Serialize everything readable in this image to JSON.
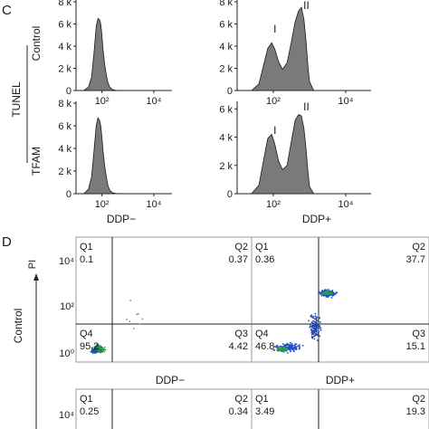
{
  "figure": {
    "panel_c_label": "C",
    "panel_d_label": "D",
    "tunel_label": "TUNEL",
    "row_control_label": "Control",
    "row_tfam_label": "TFAM",
    "xlabel_left": "DDP−",
    "xlabel_right": "DDP+",
    "control_side_label": "Control",
    "pi_label": "PI"
  },
  "chart_data": [
    {
      "type": "area",
      "panel": "C",
      "row": "Control",
      "column": "DDP−",
      "x_scale": "log",
      "x_ticks": [
        "10²",
        "10⁴"
      ],
      "y_ticks": [
        "0",
        "2 k",
        "4 k",
        "6 k",
        "8 k"
      ],
      "ylim": [
        0,
        8000
      ],
      "x": [
        20,
        30,
        40,
        50,
        60,
        70,
        80,
        90,
        100,
        110,
        130,
        150,
        170,
        200,
        260,
        350,
        500
      ],
      "values": [
        0,
        300,
        1200,
        3500,
        5800,
        6500,
        6400,
        6000,
        5000,
        3700,
        2200,
        1300,
        700,
        300,
        80,
        20,
        0
      ]
    },
    {
      "type": "area",
      "panel": "C",
      "row": "Control",
      "column": "DDP+",
      "x_scale": "log",
      "x_ticks": [
        "10²",
        "10⁴"
      ],
      "y_ticks": [
        "0",
        "2 k",
        "4 k",
        "6 k",
        "8 k"
      ],
      "ylim": [
        0,
        8000
      ],
      "peak_labels": [
        "I",
        "II"
      ],
      "x": [
        25,
        40,
        55,
        70,
        90,
        110,
        140,
        180,
        240,
        320,
        400,
        500,
        600,
        700,
        800,
        900,
        1000,
        1300
      ],
      "values": [
        0,
        600,
        2400,
        3800,
        4300,
        3700,
        2600,
        1900,
        2500,
        4500,
        6200,
        7200,
        7500,
        6400,
        4500,
        2200,
        800,
        0
      ]
    },
    {
      "type": "area",
      "panel": "C",
      "row": "TFAM",
      "column": "DDP−",
      "x_scale": "log",
      "x_ticks": [
        "10²",
        "10⁴"
      ],
      "y_ticks": [
        "0",
        "2 k",
        "4 k",
        "6 k",
        "8 k"
      ],
      "ylim": [
        0,
        8000
      ],
      "x": [
        20,
        30,
        40,
        50,
        60,
        70,
        80,
        90,
        100,
        110,
        130,
        150,
        170,
        200,
        260,
        350,
        500
      ],
      "values": [
        0,
        400,
        1500,
        3900,
        6000,
        6700,
        6500,
        6000,
        5000,
        3800,
        2300,
        1400,
        700,
        300,
        80,
        20,
        0
      ]
    },
    {
      "type": "area",
      "panel": "C",
      "row": "TFAM",
      "column": "DDP+",
      "x_scale": "log",
      "x_ticks": [
        "10²",
        "10⁴"
      ],
      "y_ticks": [
        "0",
        "2 k",
        "4 k",
        "6 k"
      ],
      "ylim": [
        0,
        6400
      ],
      "peak_labels": [
        "I",
        "II"
      ],
      "x": [
        25,
        40,
        55,
        70,
        90,
        110,
        140,
        180,
        240,
        320,
        400,
        500,
        600,
        700,
        800,
        900,
        1000,
        1300
      ],
      "values": [
        0,
        600,
        2500,
        3900,
        4200,
        3500,
        2300,
        1700,
        2000,
        3800,
        5200,
        5600,
        5500,
        4600,
        3200,
        1600,
        500,
        0
      ]
    },
    {
      "type": "scatter",
      "panel": "D",
      "row": "Control",
      "column": "DDP−",
      "xlabel": "DDP−",
      "ylabel": "PI",
      "x_scale": "log",
      "y_scale": "log",
      "y_ticks": [
        "10⁰",
        "10²",
        "10⁴"
      ],
      "quadrants": {
        "Q1": "0.1",
        "Q2": "0.37",
        "Q3": "4.42",
        "Q4": "95.2"
      }
    },
    {
      "type": "scatter",
      "panel": "D",
      "row": "Control",
      "column": "DDP+",
      "xlabel": "DDP+",
      "x_scale": "log",
      "y_scale": "log",
      "quadrants": {
        "Q1": "0.36",
        "Q2": "37.7",
        "Q3": "15.1",
        "Q4": "46.8"
      }
    },
    {
      "type": "scatter",
      "panel": "D",
      "row": "TFAM",
      "column": "DDP−",
      "x_scale": "log",
      "y_scale": "log",
      "y_ticks": [
        "10⁴"
      ],
      "quadrants": {
        "Q1": "0.25",
        "Q2": "0.34"
      }
    },
    {
      "type": "scatter",
      "panel": "D",
      "row": "TFAM",
      "column": "DDP+",
      "x_scale": "log",
      "y_scale": "log",
      "quadrants": {
        "Q1": "3.49",
        "Q2": "19.3"
      }
    }
  ]
}
